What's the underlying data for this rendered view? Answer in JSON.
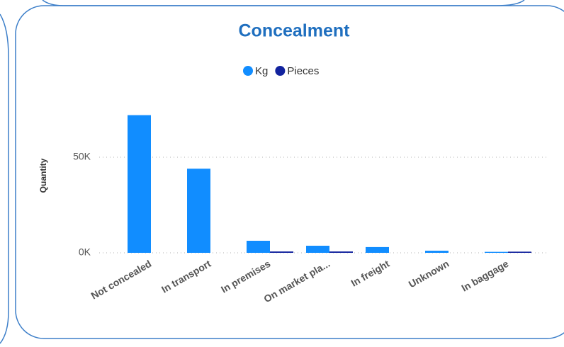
{
  "chart_data": {
    "type": "bar",
    "title": "Concealment",
    "y_label": "Quantity",
    "categories": [
      "Not concealed",
      "In transport",
      "In premises",
      "On market pla...",
      "In freight",
      "Unknown",
      "In baggage"
    ],
    "series": [
      {
        "name": "Kg",
        "color": "#118dff",
        "values": [
          72000,
          44000,
          6300,
          3700,
          3000,
          1100,
          500
        ]
      },
      {
        "name": "Pieces",
        "color": "#12239e",
        "values": [
          0,
          0,
          700,
          700,
          0,
          0,
          600
        ]
      }
    ],
    "ylim": [
      0,
      80000
    ],
    "yticks": [
      {
        "value": 0,
        "label": "0K"
      },
      {
        "value": 50000,
        "label": "50K"
      }
    ],
    "grid": true,
    "legend": "top"
  }
}
